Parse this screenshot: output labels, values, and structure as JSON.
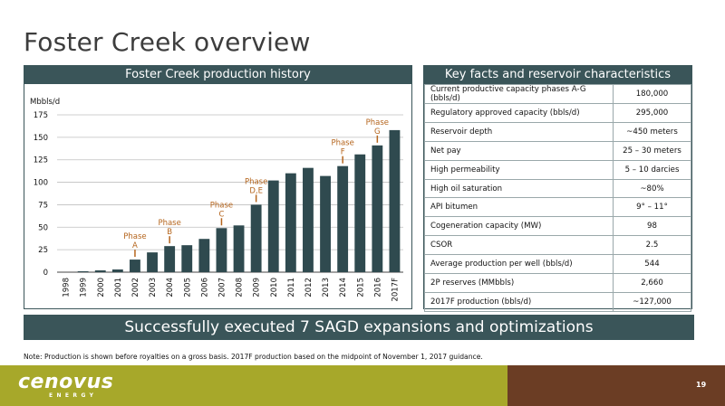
{
  "page": {
    "title": "Foster Creek overview",
    "banner": "Successfully executed 7 SAGD expansions and optimizations",
    "note": "Note: Production is shown before royalties on a gross basis. 2017F production based on the midpoint of November 1, 2017 guidance.",
    "page_number": "19"
  },
  "brand": {
    "logo_word": "cenovus",
    "logo_sub": "ENERGY",
    "colors": {
      "teal": "#3a5559",
      "bar": "#2f4a4f",
      "olive": "#a7a82a",
      "brown": "#6b3d24",
      "phase_label": "#b5651d"
    }
  },
  "chart_data": {
    "type": "bar",
    "title": "Foster Creek production history",
    "ylabel": "Mbbls/d",
    "xlabel": "",
    "ylim": [
      0,
      175
    ],
    "yticks": [
      0,
      25,
      50,
      75,
      100,
      125,
      150,
      175
    ],
    "grid": true,
    "categories": [
      "1998",
      "1999",
      "2000",
      "2001",
      "2002",
      "2003",
      "2004",
      "2005",
      "2006",
      "2007",
      "2008",
      "2009",
      "2010",
      "2011",
      "2012",
      "2013",
      "2014",
      "2015",
      "2016",
      "2017F"
    ],
    "values": [
      0,
      1,
      2,
      3,
      14,
      22,
      29,
      30,
      37,
      49,
      52,
      75,
      102,
      110,
      116,
      107,
      118,
      131,
      141,
      158
    ],
    "annotations": [
      {
        "category": "2002",
        "lines": [
          "Phase",
          "A"
        ]
      },
      {
        "category": "2004",
        "lines": [
          "Phase",
          "B"
        ]
      },
      {
        "category": "2007",
        "lines": [
          "Phase",
          "C"
        ]
      },
      {
        "category": "2009",
        "lines": [
          "Phase",
          "D,E"
        ]
      },
      {
        "category": "2014",
        "lines": [
          "Phase",
          "F"
        ]
      },
      {
        "category": "2016",
        "lines": [
          "Phase",
          "G"
        ]
      }
    ]
  },
  "facts": {
    "header": "Key facts and reservoir characteristics",
    "rows": [
      {
        "label": "Current productive capacity phases A-G (bbls/d)",
        "value": "180,000"
      },
      {
        "label": "Regulatory approved capacity (bbls/d)",
        "value": "295,000"
      },
      {
        "label": "Reservoir depth",
        "value": "~450 meters"
      },
      {
        "label": "Net pay",
        "value": "25 – 30 meters"
      },
      {
        "label": "High permeability",
        "value": "5 – 10 darcies"
      },
      {
        "label": "High oil saturation",
        "value": "~80%"
      },
      {
        "label": "API bitumen",
        "value": "9° – 11°"
      },
      {
        "label": "Cogeneration capacity (MW)",
        "value": "98"
      },
      {
        "label": "CSOR",
        "value": "2.5"
      },
      {
        "label": "Average production per well (bbls/d)",
        "value": "544"
      },
      {
        "label": "2P reserves (MMbbls)",
        "value": "2,660"
      },
      {
        "label": "2017F production (bbls/d)",
        "value": "~127,000"
      }
    ]
  }
}
